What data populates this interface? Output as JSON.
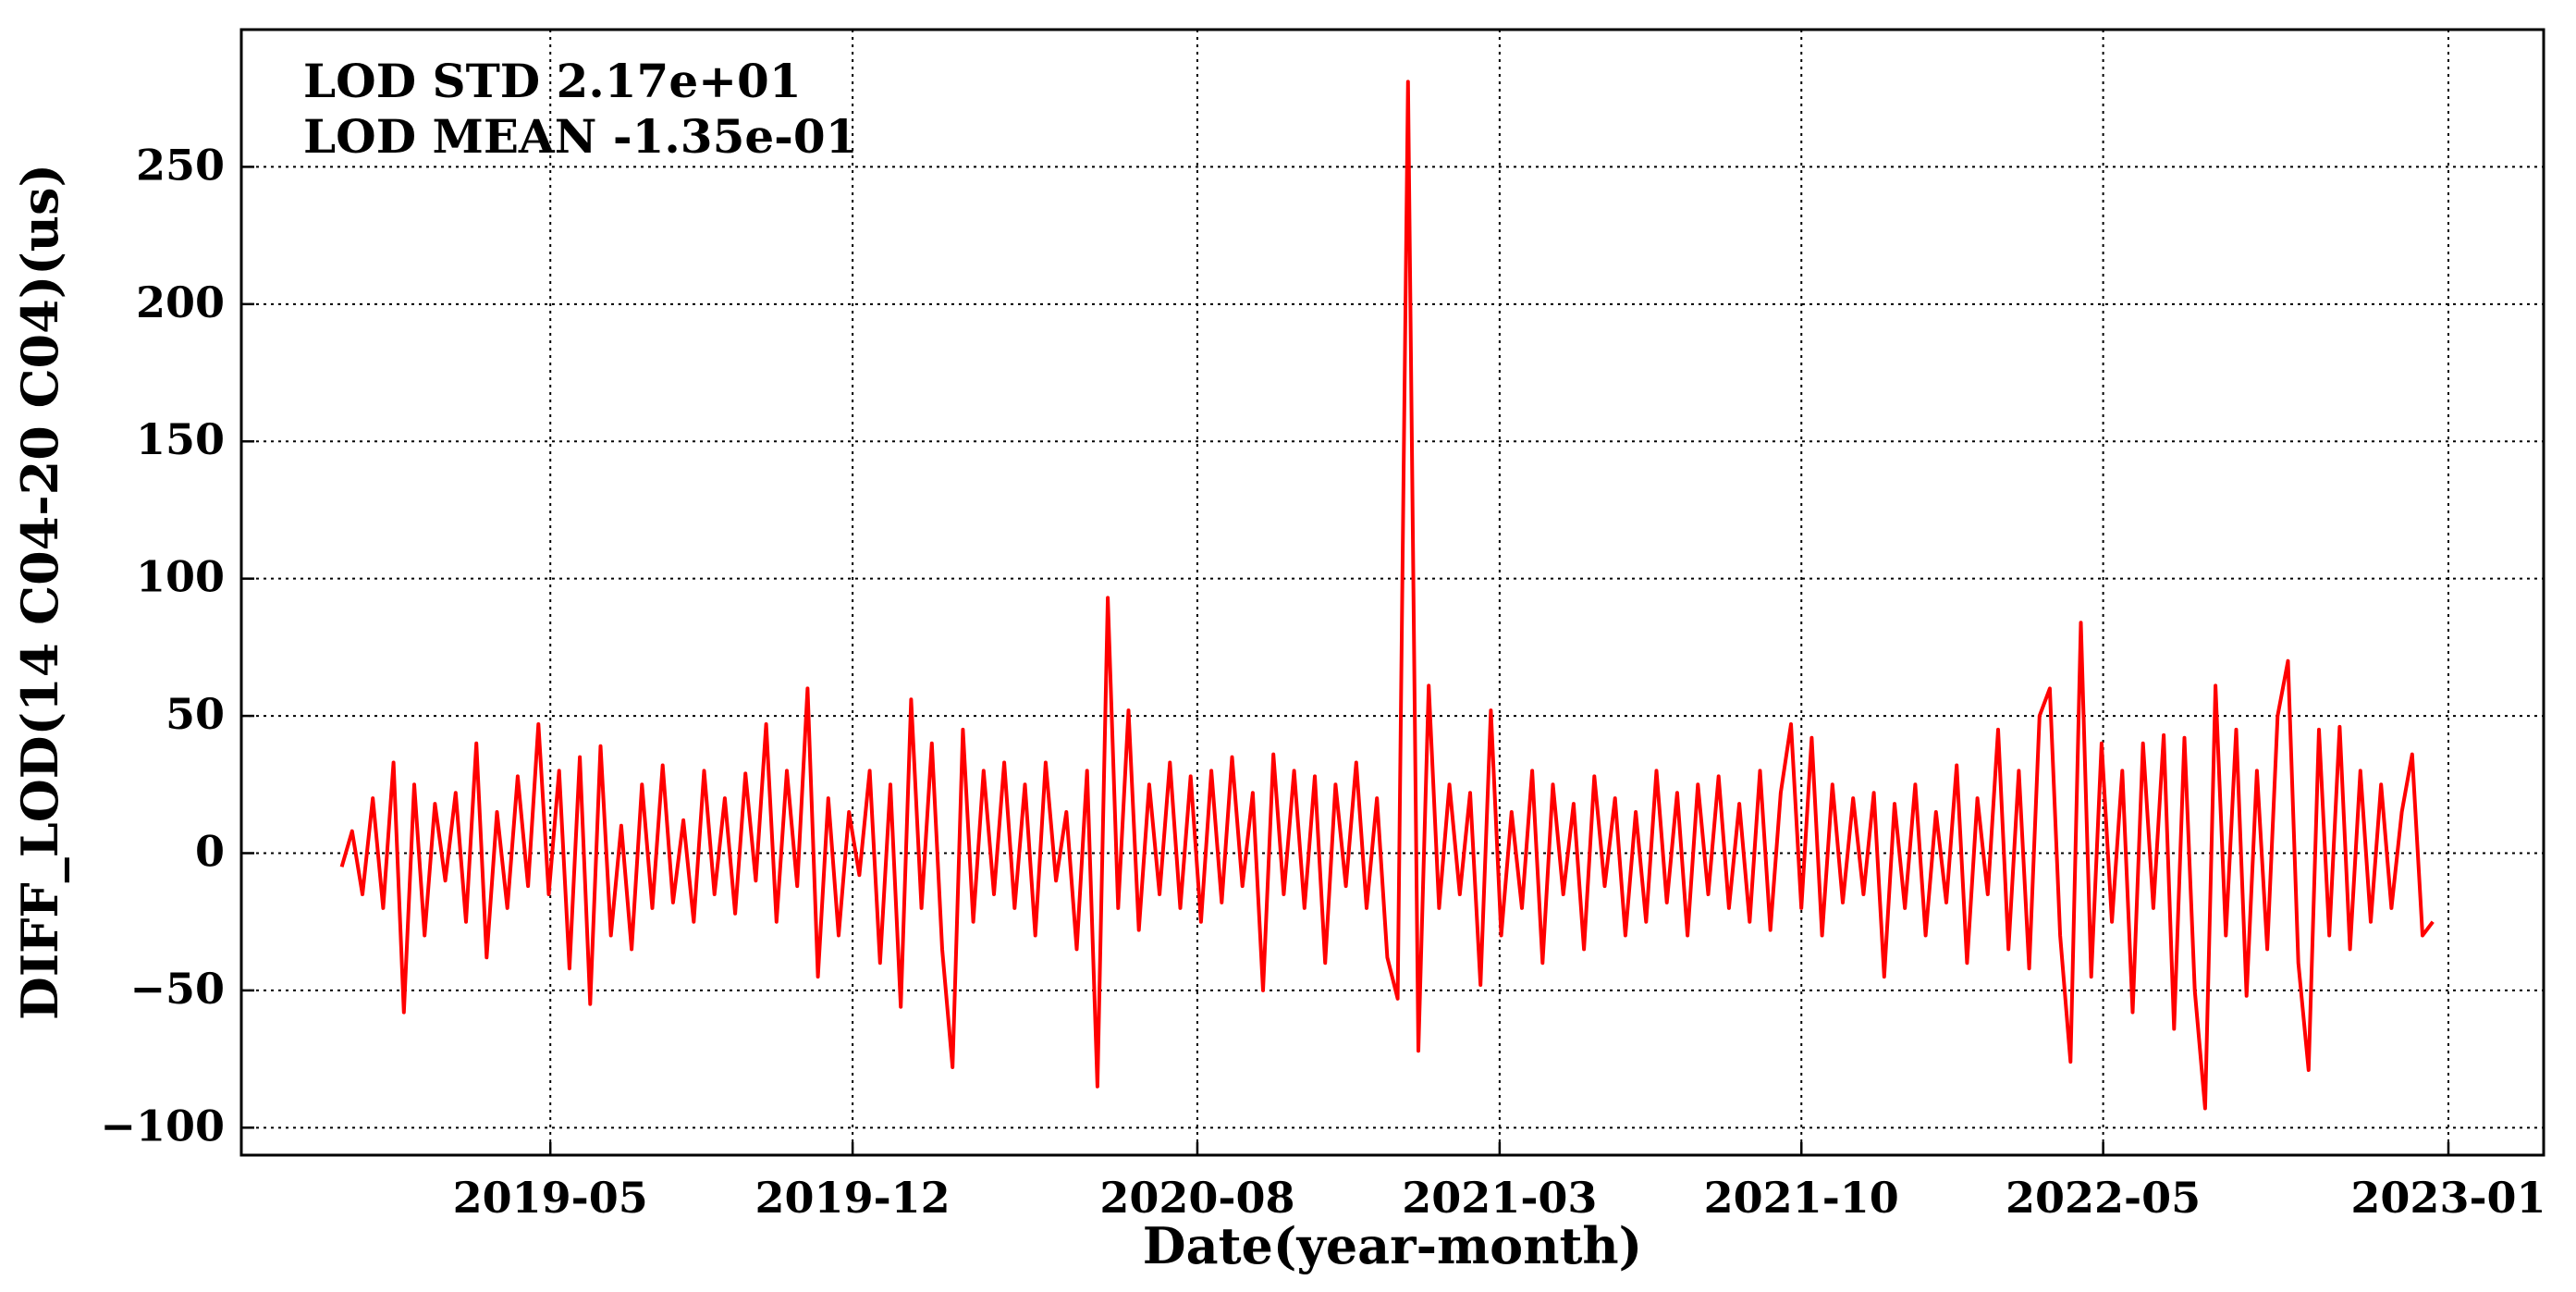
{
  "chart_data": {
    "type": "line",
    "annotations": [
      "LOD STD 2.17e+01",
      "LOD MEAN -1.35e-01"
    ],
    "ylabel": "DIFF_LOD(14 C04-20 C04)(us)",
    "xlabel": "Date(year-month)",
    "color": "#ff0000",
    "grid": true,
    "xlim": [
      2018.736,
      2023.184
    ],
    "ylim": [
      -110,
      300
    ],
    "xticks": [
      {
        "value": 2019.333,
        "label": "2019-05"
      },
      {
        "value": 2019.917,
        "label": "2019-12"
      },
      {
        "value": 2020.583,
        "label": "2020-08"
      },
      {
        "value": 2021.167,
        "label": "2021-03"
      },
      {
        "value": 2021.75,
        "label": "2021-10"
      },
      {
        "value": 2022.333,
        "label": "2022-05"
      },
      {
        "value": 2023.0,
        "label": "2023-01"
      }
    ],
    "yticks": [
      {
        "value": -100,
        "label": "−100"
      },
      {
        "value": -50,
        "label": "−50"
      },
      0,
      50,
      100,
      150,
      200,
      250
    ],
    "x": [
      2018.93,
      2018.95,
      2018.97,
      2018.99,
      2019.01,
      2019.03,
      2019.05,
      2019.07,
      2019.09,
      2019.11,
      2019.13,
      2019.15,
      2019.17,
      2019.19,
      2019.21,
      2019.23,
      2019.25,
      2019.27,
      2019.29,
      2019.31,
      2019.33,
      2019.35,
      2019.37,
      2019.39,
      2019.41,
      2019.43,
      2019.45,
      2019.47,
      2019.49,
      2019.51,
      2019.53,
      2019.55,
      2019.57,
      2019.59,
      2019.61,
      2019.63,
      2019.65,
      2019.67,
      2019.69,
      2019.71,
      2019.73,
      2019.75,
      2019.77,
      2019.79,
      2019.81,
      2019.83,
      2019.85,
      2019.87,
      2019.89,
      2019.91,
      2019.93,
      2019.95,
      2019.97,
      2019.99,
      2020.01,
      2020.03,
      2020.05,
      2020.07,
      2020.09,
      2020.11,
      2020.13,
      2020.15,
      2020.17,
      2020.19,
      2020.21,
      2020.23,
      2020.25,
      2020.27,
      2020.29,
      2020.31,
      2020.33,
      2020.35,
      2020.37,
      2020.39,
      2020.41,
      2020.43,
      2020.45,
      2020.47,
      2020.49,
      2020.51,
      2020.53,
      2020.55,
      2020.57,
      2020.59,
      2020.61,
      2020.63,
      2020.65,
      2020.67,
      2020.69,
      2020.71,
      2020.73,
      2020.75,
      2020.77,
      2020.79,
      2020.81,
      2020.83,
      2020.85,
      2020.87,
      2020.89,
      2020.91,
      2020.93,
      2020.95,
      2020.97,
      2020.99,
      2021.01,
      2021.03,
      2021.05,
      2021.07,
      2021.09,
      2021.11,
      2021.13,
      2021.15,
      2021.17,
      2021.19,
      2021.21,
      2021.23,
      2021.25,
      2021.27,
      2021.29,
      2021.31,
      2021.33,
      2021.35,
      2021.37,
      2021.39,
      2021.41,
      2021.43,
      2021.45,
      2021.47,
      2021.49,
      2021.51,
      2021.53,
      2021.55,
      2021.57,
      2021.59,
      2021.61,
      2021.63,
      2021.65,
      2021.67,
      2021.69,
      2021.71,
      2021.73,
      2021.75,
      2021.77,
      2021.79,
      2021.81,
      2021.83,
      2021.85,
      2021.87,
      2021.89,
      2021.91,
      2021.93,
      2021.95,
      2021.97,
      2021.99,
      2022.01,
      2022.03,
      2022.05,
      2022.07,
      2022.09,
      2022.11,
      2022.13,
      2022.15,
      2022.17,
      2022.19,
      2022.21,
      2022.23,
      2022.25,
      2022.27,
      2022.29,
      2022.31,
      2022.33,
      2022.35,
      2022.37,
      2022.39,
      2022.41,
      2022.43,
      2022.45,
      2022.47,
      2022.49,
      2022.51,
      2022.53,
      2022.55,
      2022.57,
      2022.59,
      2022.61,
      2022.63,
      2022.65,
      2022.67,
      2022.69,
      2022.71,
      2022.73,
      2022.75,
      2022.77,
      2022.79,
      2022.81,
      2022.83,
      2022.85,
      2022.87,
      2022.89,
      2022.91,
      2022.93,
      2022.95,
      2022.97
    ],
    "values": [
      -5,
      8,
      -15,
      20,
      -20,
      33,
      -58,
      25,
      -30,
      18,
      -10,
      22,
      -25,
      40,
      -38,
      15,
      -20,
      28,
      -12,
      47,
      -15,
      30,
      -42,
      35,
      -55,
      39,
      -30,
      10,
      -35,
      25,
      -20,
      32,
      -18,
      12,
      -25,
      30,
      -15,
      20,
      -22,
      29,
      -10,
      47,
      -25,
      30,
      -12,
      60,
      -45,
      20,
      -30,
      15,
      -8,
      30,
      -40,
      25,
      -56,
      56,
      -20,
      40,
      -35,
      -78,
      45,
      -25,
      30,
      -15,
      33,
      -20,
      25,
      -30,
      33,
      -10,
      15,
      -35,
      30,
      -85,
      93,
      -20,
      52,
      -28,
      25,
      -15,
      33,
      -20,
      28,
      -25,
      30,
      -18,
      35,
      -12,
      22,
      -50,
      36,
      -15,
      30,
      -20,
      28,
      -40,
      25,
      -12,
      33,
      -20,
      20,
      -38,
      -53,
      281,
      -72,
      61,
      -20,
      25,
      -15,
      22,
      -48,
      52,
      -30,
      15,
      -20,
      30,
      -40,
      25,
      -15,
      18,
      -35,
      28,
      -12,
      20,
      -30,
      15,
      -25,
      30,
      -18,
      22,
      -30,
      25,
      -15,
      28,
      -20,
      18,
      -25,
      30,
      -28,
      22,
      47,
      -20,
      42,
      -30,
      25,
      -18,
      20,
      -15,
      22,
      -45,
      18,
      -20,
      25,
      -30,
      15,
      -18,
      32,
      -40,
      20,
      -15,
      45,
      -35,
      30,
      -42,
      50,
      60,
      -30,
      -76,
      84,
      -45,
      40,
      -25,
      30,
      -58,
      40,
      -20,
      43,
      -64,
      42,
      -50,
      -93,
      61,
      -30,
      45,
      -52,
      30,
      -35,
      50,
      70,
      -40,
      -79,
      45,
      -30,
      46,
      -35,
      30,
      -25,
      25,
      -20,
      15,
      36,
      -30,
      -25
    ]
  }
}
